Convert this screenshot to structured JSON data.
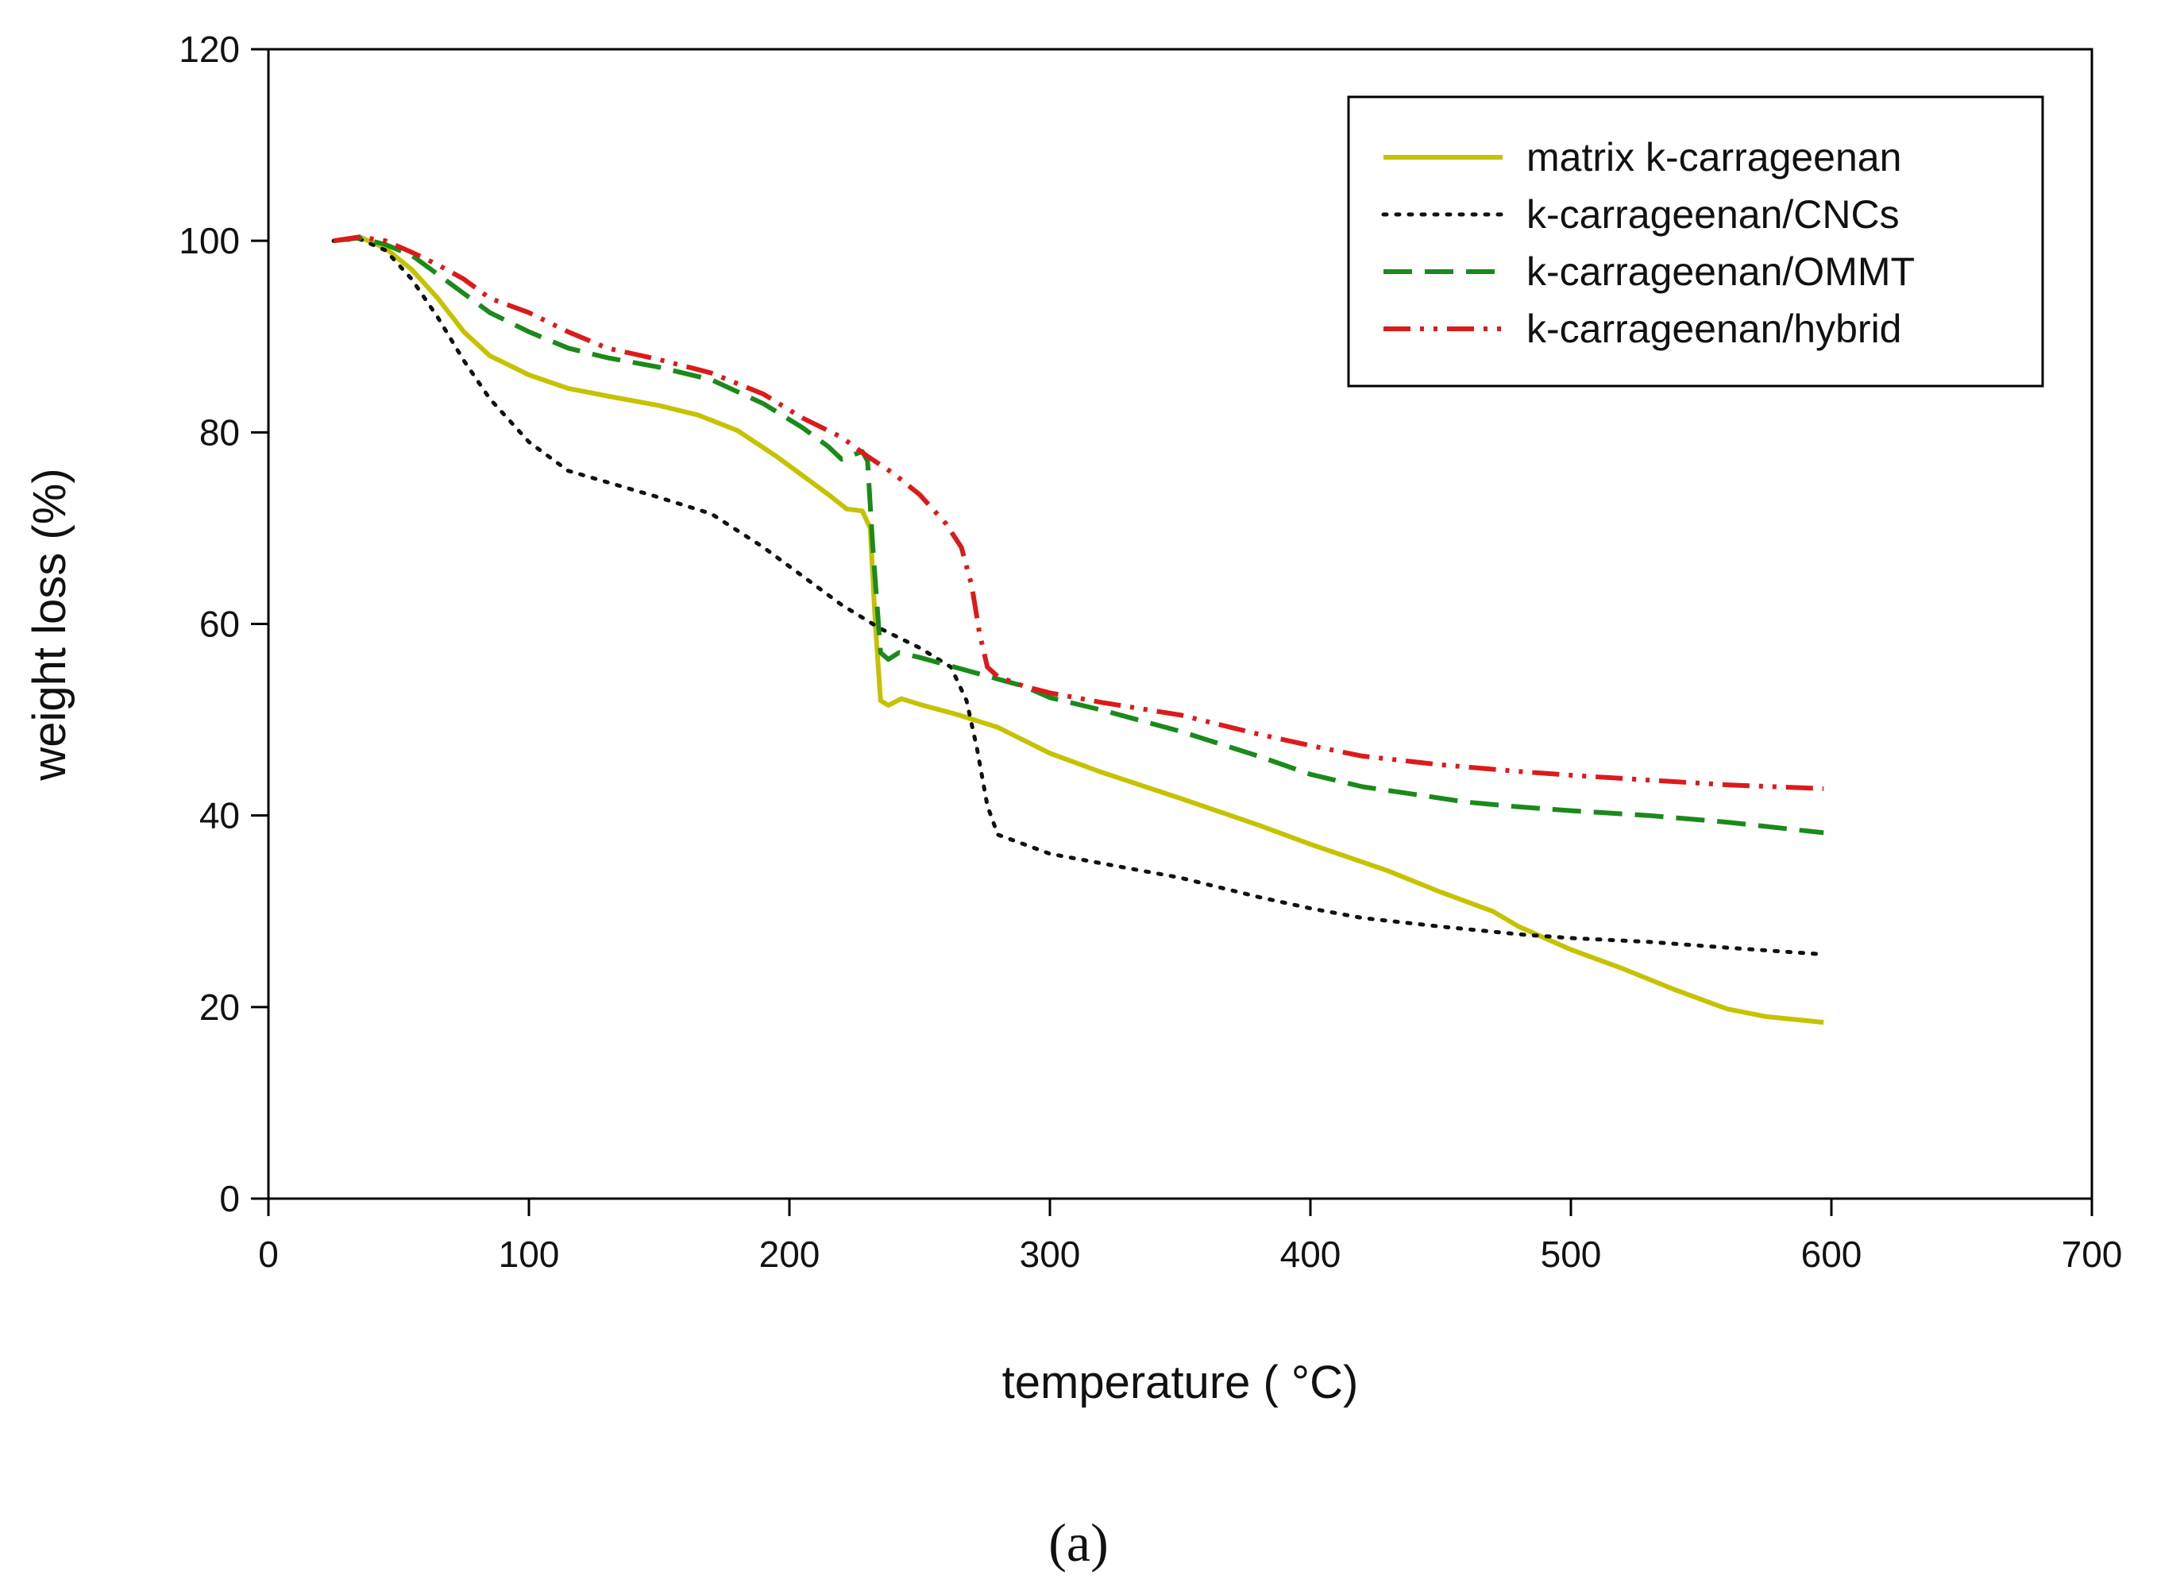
{
  "chart_data": {
    "type": "line",
    "title": "",
    "xlabel": "temperature ( °C)",
    "ylabel": "weight loss (%)",
    "xlim": [
      0,
      700
    ],
    "ylim": [
      0,
      120
    ],
    "xticks": [
      0,
      100,
      200,
      300,
      400,
      500,
      600,
      700
    ],
    "yticks": [
      0,
      20,
      40,
      60,
      80,
      100,
      120
    ],
    "grid": false,
    "legend_position": "top-right",
    "panel_label": "(a)",
    "series": [
      {
        "name": "matrix k-carrageenan",
        "color": "#c5c200",
        "style": "solid",
        "points": [
          [
            25,
            100
          ],
          [
            35,
            100.4
          ],
          [
            45,
            99.2
          ],
          [
            55,
            97
          ],
          [
            65,
            94
          ],
          [
            75,
            90.5
          ],
          [
            85,
            88
          ],
          [
            100,
            86
          ],
          [
            115,
            84.6
          ],
          [
            130,
            83.8
          ],
          [
            150,
            82.8
          ],
          [
            165,
            81.8
          ],
          [
            180,
            80.2
          ],
          [
            195,
            77.5
          ],
          [
            205,
            75.5
          ],
          [
            215,
            73.5
          ],
          [
            222,
            72
          ],
          [
            228,
            71.8
          ],
          [
            231,
            70
          ],
          [
            233,
            60
          ],
          [
            235,
            52
          ],
          [
            238,
            51.5
          ],
          [
            243,
            52.2
          ],
          [
            250,
            51.6
          ],
          [
            265,
            50.5
          ],
          [
            280,
            49.2
          ],
          [
            300,
            46.5
          ],
          [
            320,
            44.5
          ],
          [
            350,
            41.8
          ],
          [
            380,
            39
          ],
          [
            400,
            37
          ],
          [
            430,
            34.2
          ],
          [
            450,
            32
          ],
          [
            470,
            30
          ],
          [
            480,
            28.4
          ],
          [
            500,
            26
          ],
          [
            520,
            24
          ],
          [
            540,
            21.8
          ],
          [
            560,
            19.8
          ],
          [
            575,
            19
          ],
          [
            597,
            18.4
          ]
        ]
      },
      {
        "name": "k-carrageenan/CNCs",
        "color": "#111111",
        "style": "dotted",
        "points": [
          [
            25,
            100
          ],
          [
            35,
            100.2
          ],
          [
            45,
            99
          ],
          [
            55,
            96
          ],
          [
            65,
            92
          ],
          [
            75,
            87.5
          ],
          [
            85,
            83.5
          ],
          [
            100,
            79
          ],
          [
            115,
            76
          ],
          [
            130,
            74.8
          ],
          [
            150,
            73.2
          ],
          [
            170,
            71.5
          ],
          [
            190,
            68
          ],
          [
            205,
            65
          ],
          [
            220,
            62
          ],
          [
            235,
            59.5
          ],
          [
            250,
            57.5
          ],
          [
            262,
            55.5
          ],
          [
            268,
            52
          ],
          [
            272,
            47
          ],
          [
            276,
            41
          ],
          [
            280,
            38
          ],
          [
            290,
            37
          ],
          [
            300,
            36
          ],
          [
            320,
            35
          ],
          [
            350,
            33.5
          ],
          [
            380,
            31.5
          ],
          [
            400,
            30.3
          ],
          [
            420,
            29.3
          ],
          [
            450,
            28.4
          ],
          [
            480,
            27.6
          ],
          [
            500,
            27.2
          ],
          [
            530,
            26.8
          ],
          [
            560,
            26.2
          ],
          [
            597,
            25.5
          ]
        ]
      },
      {
        "name": "k-carrageenan/OMMT",
        "color": "#1a8a1a",
        "style": "dashed",
        "points": [
          [
            25,
            100
          ],
          [
            35,
            100.3
          ],
          [
            45,
            99.6
          ],
          [
            55,
            98.5
          ],
          [
            65,
            96.5
          ],
          [
            75,
            94.5
          ],
          [
            85,
            92.5
          ],
          [
            100,
            90.5
          ],
          [
            115,
            88.8
          ],
          [
            130,
            87.8
          ],
          [
            150,
            86.8
          ],
          [
            170,
            85.5
          ],
          [
            190,
            83
          ],
          [
            205,
            80.5
          ],
          [
            215,
            78.5
          ],
          [
            220,
            77.2
          ],
          [
            224,
            77.6
          ],
          [
            228,
            78
          ],
          [
            230,
            77
          ],
          [
            232,
            68
          ],
          [
            235,
            57
          ],
          [
            238,
            56.3
          ],
          [
            242,
            57
          ],
          [
            250,
            56.5
          ],
          [
            270,
            55
          ],
          [
            290,
            53.5
          ],
          [
            300,
            52.3
          ],
          [
            320,
            51
          ],
          [
            350,
            48.8
          ],
          [
            380,
            46.2
          ],
          [
            400,
            44.3
          ],
          [
            420,
            43
          ],
          [
            440,
            42.2
          ],
          [
            460,
            41.4
          ],
          [
            480,
            40.9
          ],
          [
            500,
            40.5
          ],
          [
            530,
            40
          ],
          [
            560,
            39.3
          ],
          [
            597,
            38.2
          ]
        ]
      },
      {
        "name": "k-carrageenan/hybrid",
        "color": "#dd1a1a",
        "style": "dashdotdot",
        "points": [
          [
            25,
            100
          ],
          [
            35,
            100.4
          ],
          [
            45,
            100
          ],
          [
            55,
            98.8
          ],
          [
            65,
            97.5
          ],
          [
            75,
            96
          ],
          [
            85,
            94
          ],
          [
            100,
            92.5
          ],
          [
            115,
            90.5
          ],
          [
            130,
            88.8
          ],
          [
            150,
            87.6
          ],
          [
            170,
            86.2
          ],
          [
            190,
            84
          ],
          [
            205,
            81.5
          ],
          [
            220,
            79.5
          ],
          [
            230,
            77.5
          ],
          [
            240,
            75.7
          ],
          [
            250,
            73.5
          ],
          [
            260,
            70.5
          ],
          [
            266,
            68
          ],
          [
            270,
            64
          ],
          [
            273,
            59
          ],
          [
            276,
            55.5
          ],
          [
            280,
            54.5
          ],
          [
            290,
            53.5
          ],
          [
            300,
            52.8
          ],
          [
            320,
            51.8
          ],
          [
            350,
            50.5
          ],
          [
            380,
            48.5
          ],
          [
            400,
            47.3
          ],
          [
            420,
            46.2
          ],
          [
            450,
            45.3
          ],
          [
            480,
            44.6
          ],
          [
            500,
            44.2
          ],
          [
            530,
            43.7
          ],
          [
            560,
            43.2
          ],
          [
            597,
            42.8
          ]
        ]
      }
    ]
  }
}
